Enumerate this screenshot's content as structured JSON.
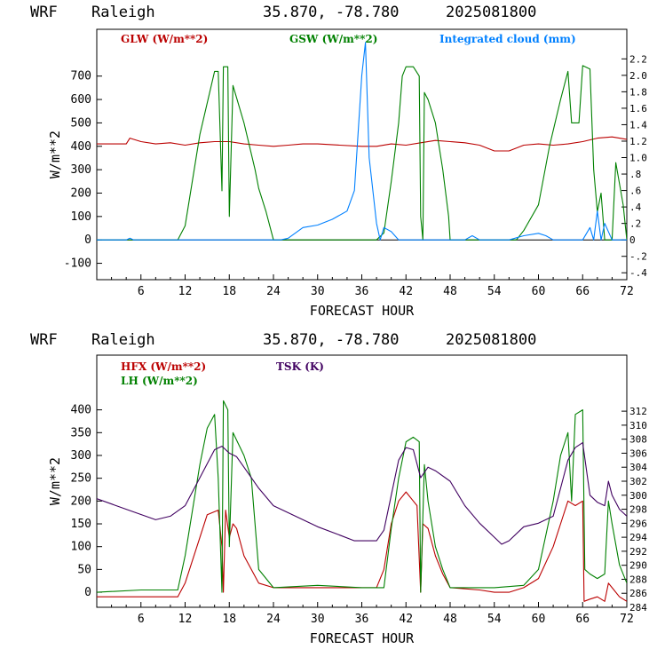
{
  "chart_data": [
    {
      "type": "line",
      "header": {
        "model": "WRF",
        "site": "Raleigh",
        "coords": "35.870, -78.780",
        "init": "2025081800"
      },
      "xlabel": "FORECAST HOUR",
      "ylabel": "W/m**2",
      "xlim": [
        0,
        72
      ],
      "xticks": [
        6,
        12,
        18,
        24,
        30,
        36,
        42,
        48,
        54,
        60,
        66,
        72
      ],
      "ylim": [
        -170,
        900
      ],
      "yticks": [
        -100,
        0,
        100,
        200,
        300,
        400,
        500,
        600,
        700
      ],
      "y2lim": [
        -0.4837,
        2.5595
      ],
      "y2ticks": [
        "-.4",
        "-.2",
        "0",
        ".2",
        ".4",
        ".6",
        ".8",
        "1.0",
        "1.2",
        "1.4",
        "1.6",
        "1.8",
        "2.0",
        "2.2"
      ],
      "zero_line": true,
      "series": [
        {
          "name": "GLW (W/m**2)",
          "color": "#bb0000",
          "axis": "left",
          "points": [
            [
              0,
              410
            ],
            [
              4,
              410
            ],
            [
              4.5,
              435
            ],
            [
              6,
              420
            ],
            [
              8,
              410
            ],
            [
              10,
              415
            ],
            [
              12,
              405
            ],
            [
              14,
              415
            ],
            [
              16,
              420
            ],
            [
              18,
              420
            ],
            [
              20,
              410
            ],
            [
              22,
              405
            ],
            [
              24,
              400
            ],
            [
              26,
              405
            ],
            [
              28,
              410
            ],
            [
              30,
              410
            ],
            [
              33,
              405
            ],
            [
              36,
              400
            ],
            [
              38,
              400
            ],
            [
              40,
              410
            ],
            [
              42,
              405
            ],
            [
              44,
              415
            ],
            [
              46,
              425
            ],
            [
              48,
              420
            ],
            [
              50,
              415
            ],
            [
              52,
              405
            ],
            [
              54,
              380
            ],
            [
              56,
              380
            ],
            [
              58,
              405
            ],
            [
              60,
              410
            ],
            [
              62,
              405
            ],
            [
              64,
              410
            ],
            [
              66,
              420
            ],
            [
              68,
              435
            ],
            [
              70,
              440
            ],
            [
              72,
              430
            ]
          ]
        },
        {
          "name": "GSW (W/m**2)",
          "color": "#008000",
          "axis": "left",
          "points": [
            [
              0,
              0
            ],
            [
              11,
              0
            ],
            [
              12,
              60
            ],
            [
              14,
              450
            ],
            [
              16,
              720
            ],
            [
              16.5,
              720
            ],
            [
              17,
              210
            ],
            [
              17.2,
              740
            ],
            [
              17.8,
              740
            ],
            [
              18,
              100
            ],
            [
              18.5,
              660
            ],
            [
              20,
              500
            ],
            [
              21.5,
              300
            ],
            [
              22,
              220
            ],
            [
              23,
              120
            ],
            [
              24,
              0
            ],
            [
              38,
              0
            ],
            [
              39,
              30
            ],
            [
              40,
              250
            ],
            [
              41,
              500
            ],
            [
              41.5,
              700
            ],
            [
              42,
              740
            ],
            [
              43,
              740
            ],
            [
              43.8,
              700
            ],
            [
              44,
              100
            ],
            [
              44.3,
              0
            ],
            [
              44.5,
              630
            ],
            [
              45,
              600
            ],
            [
              46,
              500
            ],
            [
              47,
              300
            ],
            [
              47.8,
              100
            ],
            [
              48,
              0
            ],
            [
              57,
              0
            ],
            [
              58,
              40
            ],
            [
              60,
              150
            ],
            [
              61.5,
              400
            ],
            [
              63,
              600
            ],
            [
              64,
              720
            ],
            [
              64.5,
              500
            ],
            [
              65.5,
              500
            ],
            [
              66,
              745
            ],
            [
              67,
              730
            ],
            [
              67.5,
              300
            ],
            [
              68,
              120
            ],
            [
              68.5,
              200
            ],
            [
              69,
              0
            ],
            [
              70,
              0
            ],
            [
              70.5,
              330
            ],
            [
              71.5,
              150
            ],
            [
              72,
              0
            ]
          ]
        },
        {
          "name": "Integrated cloud (mm)",
          "color": "#0080ff",
          "axis": "right",
          "points": [
            [
              0,
              0
            ],
            [
              4,
              0
            ],
            [
              4.5,
              0.02
            ],
            [
              5,
              0
            ],
            [
              25,
              0
            ],
            [
              26,
              0.02
            ],
            [
              28,
              0.15
            ],
            [
              30,
              0.18
            ],
            [
              32,
              0.25
            ],
            [
              34,
              0.35
            ],
            [
              35,
              0.6
            ],
            [
              36,
              2.0
            ],
            [
              36.5,
              2.4
            ],
            [
              37,
              1.0
            ],
            [
              38,
              0.2
            ],
            [
              38.5,
              0
            ],
            [
              39,
              0.15
            ],
            [
              40,
              0.1
            ],
            [
              41,
              0
            ],
            [
              50,
              0
            ],
            [
              51,
              0.05
            ],
            [
              52,
              0
            ],
            [
              56,
              0
            ],
            [
              58,
              0.05
            ],
            [
              60,
              0.08
            ],
            [
              61,
              0.05
            ],
            [
              62,
              0
            ],
            [
              66,
              0
            ],
            [
              67,
              0.15
            ],
            [
              67.5,
              0
            ],
            [
              68,
              0.35
            ],
            [
              68.5,
              0
            ],
            [
              69,
              0.2
            ],
            [
              70,
              0
            ],
            [
              72,
              0
            ]
          ]
        }
      ]
    },
    {
      "type": "line",
      "header": {
        "model": "WRF",
        "site": "Raleigh",
        "coords": "35.870, -78.780",
        "init": "2025081800"
      },
      "xlabel": "FORECAST HOUR",
      "ylabel": "W/m**2",
      "xlim": [
        0,
        72
      ],
      "xticks": [
        6,
        12,
        18,
        24,
        30,
        36,
        42,
        48,
        54,
        60,
        66,
        72
      ],
      "ylim": [
        -33,
        520
      ],
      "yticks": [
        0,
        50,
        100,
        150,
        200,
        250,
        300,
        350,
        400
      ],
      "y2lim": [
        284,
        320
      ],
      "y2ticks": [
        284,
        286,
        288,
        290,
        292,
        294,
        296,
        298,
        300,
        302,
        304,
        306,
        308,
        310,
        312
      ],
      "series": [
        {
          "name": "HFX (W/m**2)",
          "color": "#bb0000",
          "axis": "left",
          "points": [
            [
              0,
              -10
            ],
            [
              6,
              -10
            ],
            [
              11,
              -10
            ],
            [
              12,
              20
            ],
            [
              14,
              120
            ],
            [
              15,
              170
            ],
            [
              16.5,
              180
            ],
            [
              17,
              100
            ],
            [
              17.2,
              0
            ],
            [
              17.5,
              180
            ],
            [
              18,
              120
            ],
            [
              18.5,
              150
            ],
            [
              19,
              140
            ],
            [
              20,
              80
            ],
            [
              22,
              20
            ],
            [
              24,
              10
            ],
            [
              30,
              10
            ],
            [
              34,
              10
            ],
            [
              38,
              10
            ],
            [
              39,
              50
            ],
            [
              40,
              150
            ],
            [
              41,
              200
            ],
            [
              42,
              220
            ],
            [
              43,
              200
            ],
            [
              43.5,
              190
            ],
            [
              44,
              0
            ],
            [
              44.3,
              150
            ],
            [
              45,
              140
            ],
            [
              46,
              80
            ],
            [
              47,
              40
            ],
            [
              48,
              10
            ],
            [
              52,
              5
            ],
            [
              54,
              0
            ],
            [
              56,
              0
            ],
            [
              58,
              10
            ],
            [
              60,
              30
            ],
            [
              62,
              100
            ],
            [
              63,
              150
            ],
            [
              64,
              200
            ],
            [
              65,
              190
            ],
            [
              66,
              200
            ],
            [
              66.2,
              -20
            ],
            [
              67,
              -15
            ],
            [
              68,
              -10
            ],
            [
              69,
              -20
            ],
            [
              69.5,
              20
            ],
            [
              70,
              10
            ],
            [
              71,
              -10
            ],
            [
              72,
              -20
            ]
          ]
        },
        {
          "name": "LH  (W/m**2)",
          "color": "#008000",
          "axis": "left",
          "points": [
            [
              0,
              0
            ],
            [
              6,
              5
            ],
            [
              11,
              5
            ],
            [
              12,
              80
            ],
            [
              14,
              280
            ],
            [
              15,
              360
            ],
            [
              16,
              390
            ],
            [
              16.5,
              250
            ],
            [
              17,
              0
            ],
            [
              17.2,
              420
            ],
            [
              17.8,
              400
            ],
            [
              18,
              100
            ],
            [
              18.5,
              350
            ],
            [
              20,
              300
            ],
            [
              21,
              250
            ],
            [
              22,
              50
            ],
            [
              24,
              10
            ],
            [
              30,
              15
            ],
            [
              36,
              10
            ],
            [
              39,
              10
            ],
            [
              40,
              140
            ],
            [
              41,
              250
            ],
            [
              42,
              330
            ],
            [
              43,
              340
            ],
            [
              43.8,
              330
            ],
            [
              44,
              0
            ],
            [
              44.5,
              280
            ],
            [
              45,
              200
            ],
            [
              46,
              100
            ],
            [
              47,
              50
            ],
            [
              48,
              10
            ],
            [
              54,
              10
            ],
            [
              58,
              15
            ],
            [
              60,
              50
            ],
            [
              62,
              200
            ],
            [
              63,
              300
            ],
            [
              64,
              350
            ],
            [
              64.5,
              200
            ],
            [
              65,
              390
            ],
            [
              66,
              400
            ],
            [
              66.3,
              50
            ],
            [
              67,
              40
            ],
            [
              68,
              30
            ],
            [
              69,
              40
            ],
            [
              69.5,
              200
            ],
            [
              70,
              150
            ],
            [
              71,
              60
            ],
            [
              72,
              20
            ]
          ]
        },
        {
          "name": "TSK (K)",
          "color": "#400060",
          "axis": "right",
          "points": [
            [
              0,
              299.5
            ],
            [
              4,
              298
            ],
            [
              8,
              296.5
            ],
            [
              10,
              297
            ],
            [
              12,
              298.5
            ],
            [
              14,
              302.5
            ],
            [
              16,
              306.5
            ],
            [
              17,
              307
            ],
            [
              18,
              306
            ],
            [
              19,
              305.5
            ],
            [
              20,
              304
            ],
            [
              22,
              301
            ],
            [
              24,
              298.5
            ],
            [
              28,
              296.5
            ],
            [
              30,
              295.5
            ],
            [
              33,
              294.3
            ],
            [
              35,
              293.5
            ],
            [
              38,
              293.5
            ],
            [
              39,
              295
            ],
            [
              40,
              300
            ],
            [
              41,
              305
            ],
            [
              42,
              306.8
            ],
            [
              43,
              306.5
            ],
            [
              44,
              302.5
            ],
            [
              45,
              304
            ],
            [
              46,
              303.5
            ],
            [
              48,
              302
            ],
            [
              50,
              298.5
            ],
            [
              52,
              296
            ],
            [
              54,
              294
            ],
            [
              55,
              293
            ],
            [
              56,
              293.5
            ],
            [
              58,
              295.5
            ],
            [
              60,
              296
            ],
            [
              62,
              297
            ],
            [
              63,
              301
            ],
            [
              64,
              305
            ],
            [
              65,
              306.8
            ],
            [
              66,
              307.5
            ],
            [
              67,
              300
            ],
            [
              68,
              299
            ],
            [
              69,
              298.5
            ],
            [
              69.5,
              302
            ],
            [
              70,
              300
            ],
            [
              71,
              298
            ],
            [
              72,
              297
            ]
          ]
        }
      ]
    }
  ]
}
